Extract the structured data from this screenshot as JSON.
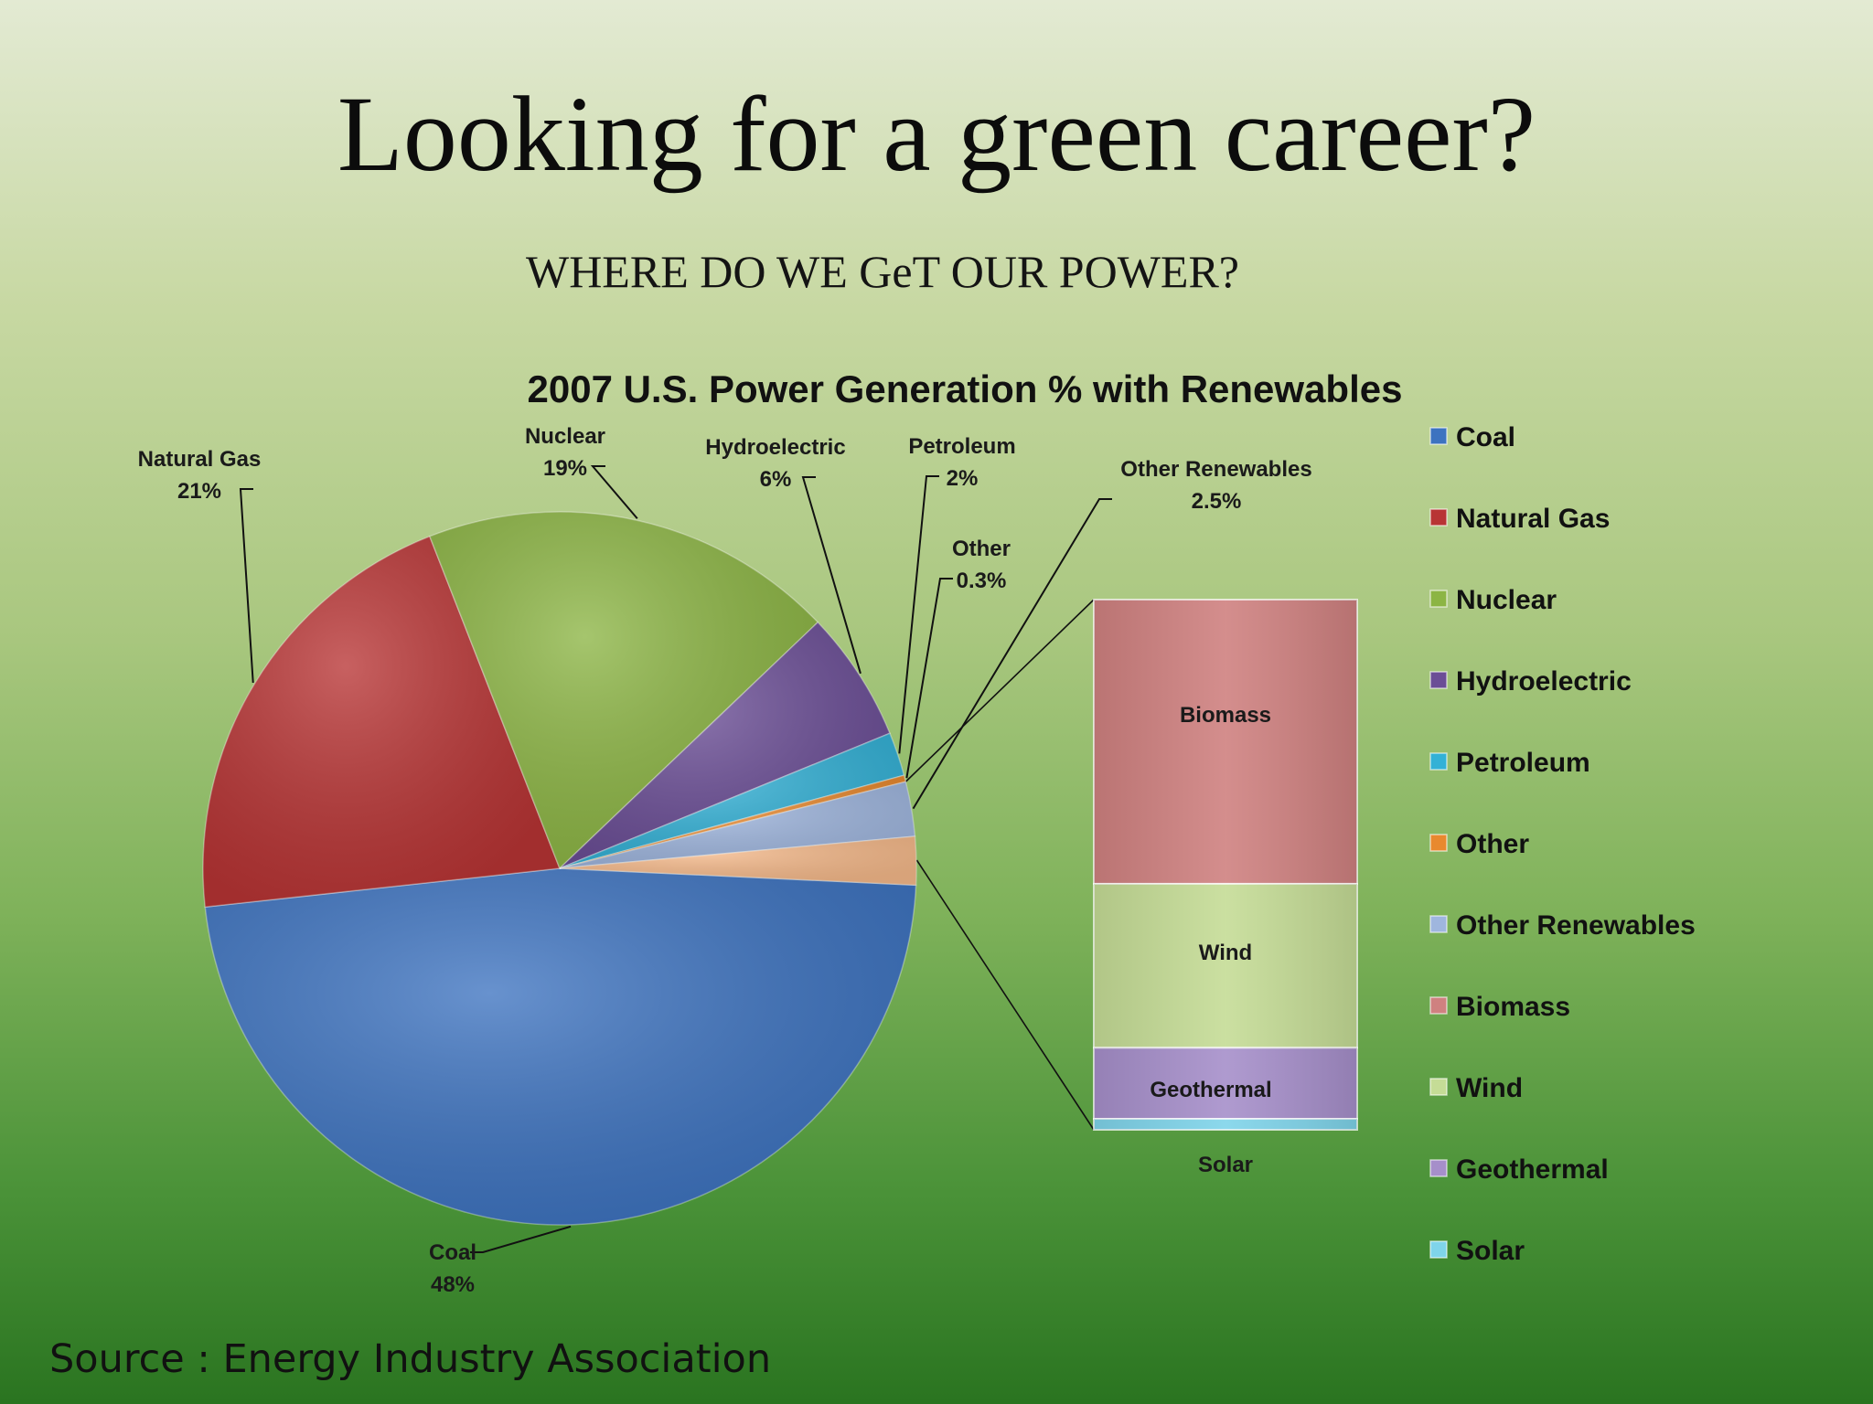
{
  "slide": {
    "title": "Looking for a green career?",
    "subtitle": "WHERE DO WE GeT OUR POWER?",
    "source": "Source : Energy Industry Association"
  },
  "chart_data": {
    "type": "pie",
    "title": "2007 U.S. Power Generation % with Renewables",
    "pie": {
      "slices": [
        {
          "name": "Coal",
          "label": "48%",
          "value": 48,
          "color": "#3d73c0"
        },
        {
          "name": "Natural Gas",
          "label": "21%",
          "value": 21,
          "color": "#b83434"
        },
        {
          "name": "Nuclear",
          "label": "19%",
          "value": 19,
          "color": "#8cb544"
        },
        {
          "name": "Hydroelectric",
          "label": "6%",
          "value": 6,
          "color": "#6b4e96"
        },
        {
          "name": "Petroleum",
          "label": "2%",
          "value": 2,
          "color": "#33b1d6"
        },
        {
          "name": "Other",
          "label": "0.3%",
          "value": 0.3,
          "color": "#e8892f"
        },
        {
          "name": "Other Renewables",
          "label": "2.5%",
          "value": 2.5,
          "color": "#9fb6de"
        }
      ]
    },
    "breakout": {
      "title": "Other Renewables",
      "segments": [
        {
          "name": "Biomass",
          "value": 52,
          "color": "#cf8180"
        },
        {
          "name": "Wind",
          "value": 30,
          "color": "#c5dc96"
        },
        {
          "name": "Geothermal",
          "value": 13,
          "color": "#a68fca"
        },
        {
          "name": "Solar",
          "value": 2,
          "color": "#7fd4ea"
        }
      ]
    },
    "legend": {
      "position": "right",
      "items": [
        {
          "name": "Coal",
          "color": "#3d73c0"
        },
        {
          "name": "Natural Gas",
          "color": "#b83434"
        },
        {
          "name": "Nuclear",
          "color": "#8cb544"
        },
        {
          "name": "Hydroelectric",
          "color": "#6b4e96"
        },
        {
          "name": "Petroleum",
          "color": "#33b1d6"
        },
        {
          "name": "Other",
          "color": "#e8892f"
        },
        {
          "name": "Other Renewables",
          "color": "#9fb6de"
        },
        {
          "name": "Biomass",
          "color": "#cf8180"
        },
        {
          "name": "Wind",
          "color": "#c5dc96"
        },
        {
          "name": "Geothermal",
          "color": "#a68fca"
        },
        {
          "name": "Solar",
          "color": "#7fd4ea"
        }
      ]
    },
    "extra_slice_color": "#f5b98a"
  }
}
